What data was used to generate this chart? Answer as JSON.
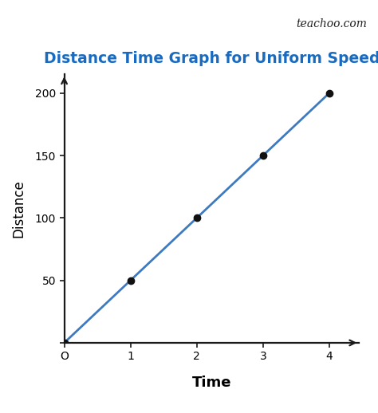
{
  "title": "Distance Time Graph for Uniform Speed",
  "title_color": "#1a6bbf",
  "title_fontsize": 13.5,
  "xlabel": "Time",
  "ylabel": "Distance",
  "xlabel_fontsize": 13,
  "ylabel_fontsize": 12,
  "x_data": [
    0,
    1,
    2,
    3,
    4
  ],
  "y_data": [
    0,
    50,
    100,
    150,
    200
  ],
  "line_color": "#3d7abf",
  "line_width": 2.0,
  "marker_color": "#111111",
  "marker_size": 6,
  "xlim": [
    0,
    4.45
  ],
  "ylim": [
    0,
    215
  ],
  "xticks": [
    0,
    1,
    2,
    3,
    4
  ],
  "yticks": [
    0,
    50,
    100,
    150,
    200
  ],
  "xticklabels": [
    "O",
    "1",
    "2",
    "3",
    "4"
  ],
  "yticklabels": [
    "",
    "50",
    "100",
    "150",
    "200"
  ],
  "background_color": "#ffffff",
  "watermark": "teachoo.com",
  "watermark_fontsize": 10,
  "axis_color": "#1a1a1a",
  "tick_fontsize": 12
}
